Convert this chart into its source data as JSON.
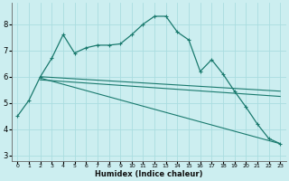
{
  "xlabel": "Humidex (Indice chaleur)",
  "bg_color": "#cceef0",
  "grid_color": "#aadde0",
  "line_color": "#1a7a6e",
  "x_ticks": [
    0,
    1,
    2,
    3,
    4,
    5,
    6,
    7,
    8,
    9,
    10,
    11,
    12,
    13,
    14,
    15,
    16,
    17,
    18,
    19,
    20,
    21,
    22,
    23
  ],
  "y_ticks": [
    3,
    4,
    5,
    6,
    7,
    8
  ],
  "xlim": [
    -0.5,
    23.5
  ],
  "ylim": [
    2.8,
    8.8
  ],
  "curve_x": [
    0,
    1,
    2,
    3,
    4,
    5,
    6,
    7,
    8,
    9,
    10,
    11,
    12,
    13,
    14,
    15,
    16,
    17,
    18,
    19,
    20,
    21,
    22,
    23
  ],
  "curve_y": [
    4.5,
    5.1,
    6.0,
    6.7,
    7.6,
    6.9,
    7.1,
    7.2,
    7.2,
    7.25,
    7.6,
    8.0,
    8.3,
    8.3,
    7.7,
    7.4,
    6.2,
    6.65,
    6.1,
    5.45,
    4.85,
    4.2,
    3.65,
    3.45
  ],
  "line1_x": [
    2,
    23
  ],
  "line1_y": [
    6.0,
    5.45
  ],
  "line2_x": [
    2,
    23
  ],
  "line2_y": [
    5.88,
    5.25
  ],
  "line3_x": [
    2,
    23
  ],
  "line3_y": [
    5.95,
    3.45
  ]
}
